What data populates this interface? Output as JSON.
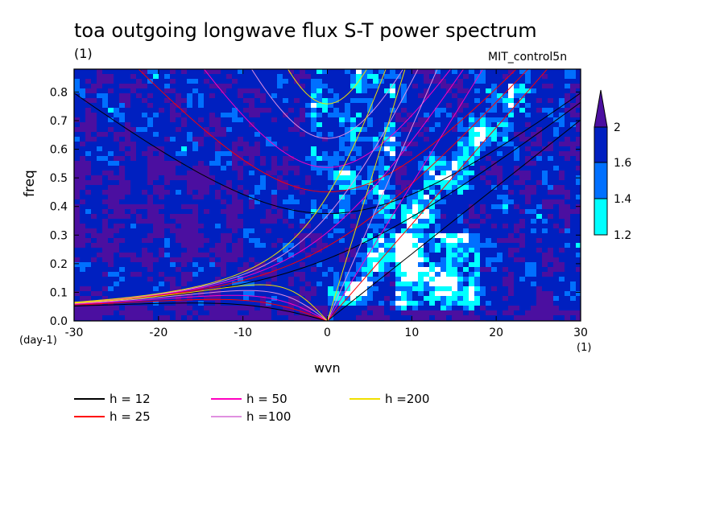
{
  "title": "toa outgoing longwave flux S-T power spectrum",
  "subtitle": "(1)",
  "run_name": "MIT_control5n",
  "chart_data": {
    "type": "heatmap",
    "xlabel": "wvn",
    "ylabel": "freq",
    "x_unit": "(1)",
    "y_unit": "(day-1)",
    "xlim": [
      -30,
      30
    ],
    "ylim": [
      0,
      0.88
    ],
    "x_ticks": [
      -30,
      -20,
      -10,
      0,
      10,
      20,
      30
    ],
    "y_ticks": [
      0.0,
      0.1,
      0.2,
      0.3,
      0.4,
      0.5,
      0.6,
      0.7,
      0.8
    ],
    "x_tick_labels": [
      "-30",
      "-20",
      "-10",
      "0",
      "10",
      "20",
      "30"
    ],
    "y_tick_labels": [
      "0.0",
      "0.1",
      "0.2",
      "0.3",
      "0.4",
      "0.5",
      "0.6",
      "0.7",
      "0.8"
    ],
    "colorbar": {
      "levels": [
        1.2,
        1.4,
        1.6,
        2
      ],
      "labels": [
        "1.2",
        "1.4",
        "1.6",
        "2"
      ],
      "colors": [
        "#ffffff",
        "#00ffff",
        "#0070ff",
        "#0020c0",
        "#4b0fa0"
      ]
    },
    "dispersion_curves": [
      {
        "label": "h = 12",
        "h": 12,
        "color": "#000000"
      },
      {
        "label": "h = 25",
        "h": 25,
        "color": "#ff0000"
      },
      {
        "label": "h = 50",
        "h": 50,
        "color": "#ff00c0"
      },
      {
        "label": "h =100",
        "h": 100,
        "color": "#e090e0"
      },
      {
        "label": "h =200",
        "h": 200,
        "color": "#f0e000"
      }
    ]
  }
}
